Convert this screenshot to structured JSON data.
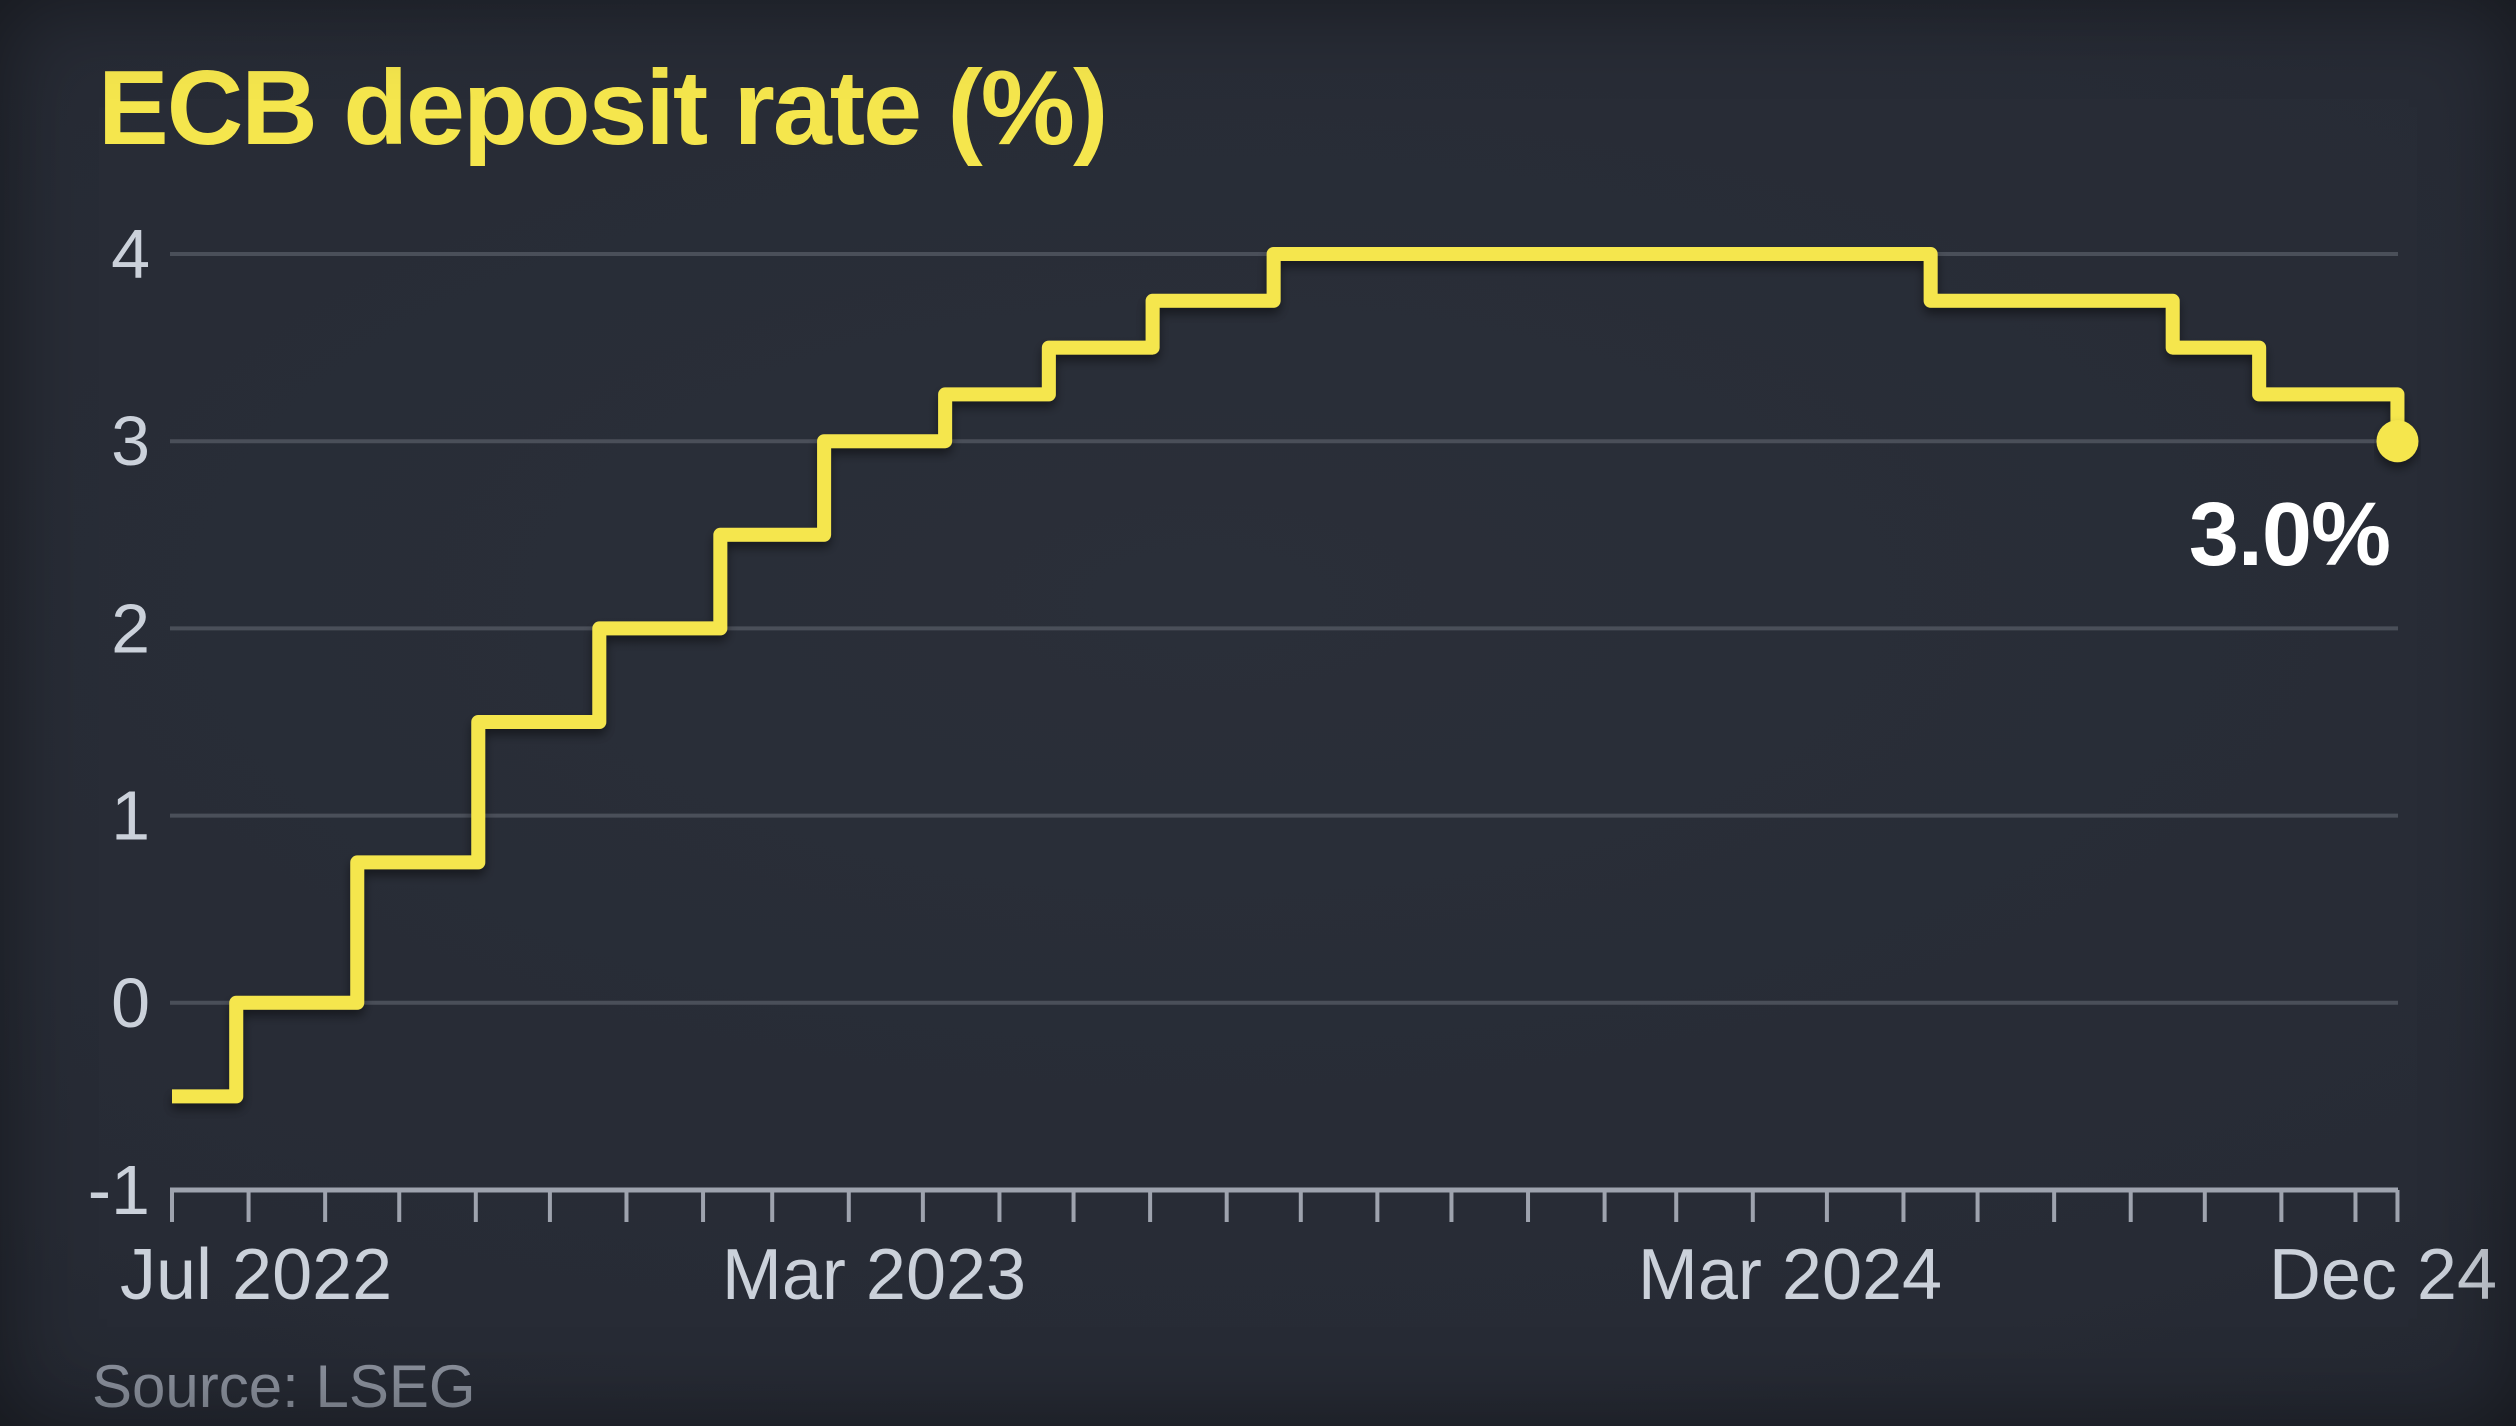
{
  "title": "ECB deposit rate (%)",
  "source": "Source: LSEG",
  "colors": {
    "background": "#272B35",
    "accent_yellow": "#F5E64D",
    "grid_line": "#4A4F59",
    "axis_line": "#9EA3AE",
    "tick_label": "#CBD1DA",
    "end_label": "#FFFFFF",
    "source_text": "#8B919D"
  },
  "chart_data": {
    "type": "line",
    "subtype": "step",
    "title": "ECB deposit rate (%)",
    "xlabel": "",
    "ylabel": "",
    "grid": true,
    "legend": false,
    "ylim": [
      -1,
      4
    ],
    "y_ticks": [
      4,
      3,
      2,
      1,
      0,
      -1
    ],
    "x_range": [
      "2022-07-01",
      "2024-12-18"
    ],
    "x_tick_unit": "month",
    "x_tick_labels": [
      "Jul 2022",
      "Mar 2023",
      "Mar 2024",
      "Dec 24"
    ],
    "x_tick_label_dates": [
      "2022-07-01",
      "2023-03-01",
      "2024-03-01",
      "2024-12-01"
    ],
    "series": [
      {
        "name": "ECB deposit rate (%)",
        "step": true,
        "points": [
          {
            "date": "2022-07-01",
            "value": -0.5
          },
          {
            "date": "2022-07-27",
            "value": 0.0
          },
          {
            "date": "2022-09-14",
            "value": 0.75
          },
          {
            "date": "2022-11-02",
            "value": 1.5
          },
          {
            "date": "2022-12-21",
            "value": 2.0
          },
          {
            "date": "2023-02-08",
            "value": 2.5
          },
          {
            "date": "2023-03-22",
            "value": 3.0
          },
          {
            "date": "2023-05-10",
            "value": 3.25
          },
          {
            "date": "2023-06-21",
            "value": 3.5
          },
          {
            "date": "2023-08-02",
            "value": 3.75
          },
          {
            "date": "2023-09-20",
            "value": 4.0
          },
          {
            "date": "2024-06-12",
            "value": 3.75
          },
          {
            "date": "2024-09-18",
            "value": 3.5
          },
          {
            "date": "2024-10-23",
            "value": 3.25
          },
          {
            "date": "2024-12-18",
            "value": 3.0
          }
        ]
      }
    ],
    "end_marker": {
      "date": "2024-12-18",
      "value": 3.0,
      "label": "3.0%"
    }
  }
}
